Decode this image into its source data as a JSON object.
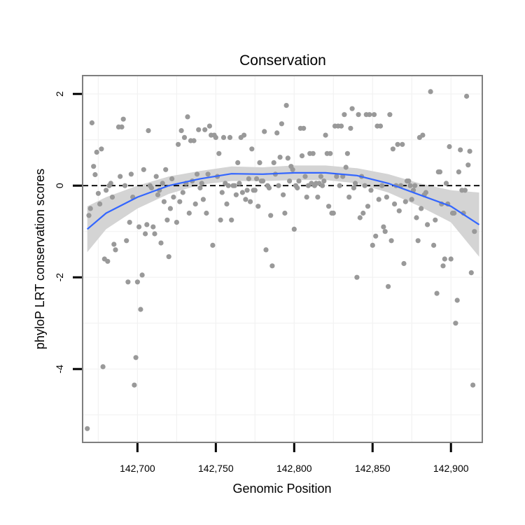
{
  "chart_data": {
    "type": "scatter",
    "title": "Conservation",
    "xlabel": "Genomic Position",
    "ylabel": "phyloP LRT conservation scores",
    "xlim": [
      142665,
      142920
    ],
    "ylim": [
      -5.6,
      2.4
    ],
    "x_ticks": [
      142700,
      142750,
      142800,
      142850,
      142900
    ],
    "x_tick_labels": [
      "142,700",
      "142,750",
      "142,800",
      "142,850",
      "142,900"
    ],
    "y_ticks": [
      2,
      0,
      -2,
      -4
    ],
    "y_tick_labels": [
      "2",
      "0",
      "-2",
      "-4"
    ],
    "grid": true,
    "reference_line": {
      "y": 0,
      "style": "dashed",
      "color": "#000000"
    },
    "colors": {
      "points": "#999999",
      "smooth": "#3366FF",
      "ribbon": "#D4D4D4",
      "border": "#7F7F7F"
    },
    "points": [
      [
        142668,
        -5.3
      ],
      [
        142669,
        -0.65
      ],
      [
        142670,
        -0.5
      ],
      [
        142671,
        1.37
      ],
      [
        142672,
        0.42
      ],
      [
        142673,
        0.24
      ],
      [
        142674,
        0.73
      ],
      [
        142675,
        -0.17
      ],
      [
        142676,
        -0.4
      ],
      [
        142677,
        0.8
      ],
      [
        142678,
        -3.95
      ],
      [
        142679,
        -1.6
      ],
      [
        142680,
        -0.1
      ],
      [
        142681,
        -1.65
      ],
      [
        142682,
        0.0
      ],
      [
        142683,
        0.05
      ],
      [
        142684,
        -0.25
      ],
      [
        142685,
        -1.28
      ],
      [
        142686,
        -1.4
      ],
      [
        142688,
        1.28
      ],
      [
        142689,
        0.2
      ],
      [
        142690,
        1.28
      ],
      [
        142691,
        1.45
      ],
      [
        142692,
        0.0
      ],
      [
        142693,
        -1.2
      ],
      [
        142694,
        -2.1
      ],
      [
        142695,
        -0.8
      ],
      [
        142696,
        0.25
      ],
      [
        142697,
        -0.25
      ],
      [
        142698,
        -4.35
      ],
      [
        142699,
        -3.75
      ],
      [
        142700,
        -2.1
      ],
      [
        142701,
        -0.9
      ],
      [
        142702,
        -2.7
      ],
      [
        142703,
        -1.95
      ],
      [
        142704,
        0.35
      ],
      [
        142705,
        -1.05
      ],
      [
        142706,
        -0.85
      ],
      [
        142707,
        1.2
      ],
      [
        142708,
        0.0
      ],
      [
        142709,
        -0.05
      ],
      [
        142710,
        -0.9
      ],
      [
        142711,
        -1.05
      ],
      [
        142712,
        0.2
      ],
      [
        142713,
        -0.2
      ],
      [
        142714,
        -0.1
      ],
      [
        142715,
        -1.25
      ],
      [
        142716,
        0.05
      ],
      [
        142717,
        -0.35
      ],
      [
        142718,
        0.35
      ],
      [
        142719,
        -0.75
      ],
      [
        142720,
        -1.55
      ],
      [
        142721,
        -0.5
      ],
      [
        142722,
        0.15
      ],
      [
        142723,
        -0.25
      ],
      [
        142725,
        -0.8
      ],
      [
        142726,
        0.9
      ],
      [
        142727,
        -0.35
      ],
      [
        142728,
        1.2
      ],
      [
        142729,
        -0.15
      ],
      [
        142730,
        1.05
      ],
      [
        142731,
        0.05
      ],
      [
        142732,
        1.5
      ],
      [
        142733,
        -0.6
      ],
      [
        142734,
        0.98
      ],
      [
        142735,
        0.1
      ],
      [
        142736,
        0.98
      ],
      [
        142737,
        -0.4
      ],
      [
        142738,
        0.25
      ],
      [
        142739,
        1.22
      ],
      [
        142740,
        -0.05
      ],
      [
        142741,
        0.05
      ],
      [
        142742,
        -0.3
      ],
      [
        142743,
        1.22
      ],
      [
        142744,
        -0.6
      ],
      [
        142745,
        0.25
      ],
      [
        142746,
        1.3
      ],
      [
        142747,
        1.1
      ],
      [
        142748,
        -1.3
      ],
      [
        142749,
        1.1
      ],
      [
        142750,
        1.05
      ],
      [
        142751,
        0.2
      ],
      [
        142752,
        0.7
      ],
      [
        142753,
        -0.75
      ],
      [
        142754,
        -0.15
      ],
      [
        142755,
        1.05
      ],
      [
        142756,
        0.05
      ],
      [
        142757,
        -0.4
      ],
      [
        142758,
        0.0
      ],
      [
        142759,
        1.05
      ],
      [
        142760,
        -0.75
      ],
      [
        142761,
        0.0
      ],
      [
        142762,
        0.0
      ],
      [
        142763,
        -0.2
      ],
      [
        142764,
        0.5
      ],
      [
        142765,
        0.05
      ],
      [
        142766,
        1.05
      ],
      [
        142767,
        -0.15
      ],
      [
        142768,
        1.1
      ],
      [
        142769,
        -0.3
      ],
      [
        142770,
        -0.1
      ],
      [
        142771,
        0.15
      ],
      [
        142772,
        -0.35
      ],
      [
        142773,
        0.8
      ],
      [
        142774,
        -0.1
      ],
      [
        142775,
        -0.1
      ],
      [
        142776,
        0.15
      ],
      [
        142777,
        -0.45
      ],
      [
        142778,
        0.5
      ],
      [
        142779,
        0.1
      ],
      [
        142780,
        0.1
      ],
      [
        142781,
        1.18
      ],
      [
        142782,
        -1.4
      ],
      [
        142783,
        0.0
      ],
      [
        142784,
        -0.05
      ],
      [
        142785,
        -0.65
      ],
      [
        142786,
        -1.75
      ],
      [
        142787,
        0.5
      ],
      [
        142788,
        0.25
      ],
      [
        142789,
        1.15
      ],
      [
        142790,
        0.0
      ],
      [
        142791,
        0.62
      ],
      [
        142792,
        1.35
      ],
      [
        142793,
        -0.2
      ],
      [
        142794,
        -0.6
      ],
      [
        142795,
        1.75
      ],
      [
        142796,
        0.6
      ],
      [
        142797,
        0.1
      ],
      [
        142798,
        0.42
      ],
      [
        142799,
        0.35
      ],
      [
        142800,
        -0.95
      ],
      [
        142801,
        0.0
      ],
      [
        142802,
        -0.05
      ],
      [
        142803,
        0.1
      ],
      [
        142804,
        1.25
      ],
      [
        142805,
        0.65
      ],
      [
        142806,
        1.25
      ],
      [
        142807,
        0.2
      ],
      [
        142808,
        -0.25
      ],
      [
        142809,
        0.0
      ],
      [
        142810,
        0.7
      ],
      [
        142811,
        0.05
      ],
      [
        142812,
        0.7
      ],
      [
        142813,
        0.0
      ],
      [
        142814,
        0.05
      ],
      [
        142815,
        -0.25
      ],
      [
        142816,
        0.05
      ],
      [
        142817,
        0.2
      ],
      [
        142818,
        0.0
      ],
      [
        142819,
        0.1
      ],
      [
        142820,
        1.1
      ],
      [
        142821,
        0.7
      ],
      [
        142822,
        -0.45
      ],
      [
        142823,
        0.7
      ],
      [
        142824,
        -0.6
      ],
      [
        142825,
        -0.6
      ],
      [
        142826,
        1.3
      ],
      [
        142827,
        0.2
      ],
      [
        142828,
        1.3
      ],
      [
        142829,
        0.0
      ],
      [
        142830,
        1.3
      ],
      [
        142831,
        0.2
      ],
      [
        142832,
        1.55
      ],
      [
        142833,
        0.4
      ],
      [
        142834,
        0.7
      ],
      [
        142835,
        -0.25
      ],
      [
        142836,
        1.25
      ],
      [
        142837,
        1.68
      ],
      [
        142838,
        -0.05
      ],
      [
        142839,
        0.05
      ],
      [
        142840,
        -2.0
      ],
      [
        142841,
        1.55
      ],
      [
        142842,
        -0.7
      ],
      [
        142843,
        0.2
      ],
      [
        142844,
        -0.6
      ],
      [
        142845,
        0.0
      ],
      [
        142846,
        1.55
      ],
      [
        142847,
        -0.45
      ],
      [
        142848,
        1.55
      ],
      [
        142849,
        -0.1
      ],
      [
        142850,
        -1.3
      ],
      [
        142851,
        1.55
      ],
      [
        142852,
        -1.1
      ],
      [
        142853,
        1.3
      ],
      [
        142854,
        -0.3
      ],
      [
        142855,
        1.3
      ],
      [
        142856,
        0.0
      ],
      [
        142857,
        -0.9
      ],
      [
        142858,
        -1.0
      ],
      [
        142859,
        -0.25
      ],
      [
        142860,
        -2.2
      ],
      [
        142861,
        1.55
      ],
      [
        142862,
        -1.2
      ],
      [
        142863,
        0.8
      ],
      [
        142864,
        -0.4
      ],
      [
        142865,
        0.0
      ],
      [
        142866,
        0.9
      ],
      [
        142867,
        -0.55
      ],
      [
        142868,
        0.0
      ],
      [
        142869,
        0.9
      ],
      [
        142870,
        -1.7
      ],
      [
        142871,
        -0.35
      ],
      [
        142872,
        0.1
      ],
      [
        142873,
        0.1
      ],
      [
        142874,
        0.0
      ],
      [
        142875,
        -0.3
      ],
      [
        142876,
        -0.1
      ],
      [
        142877,
        0.0
      ],
      [
        142878,
        -0.7
      ],
      [
        142879,
        -1.2
      ],
      [
        142880,
        1.05
      ],
      [
        142881,
        -0.5
      ],
      [
        142882,
        1.1
      ],
      [
        142883,
        -0.2
      ],
      [
        142884,
        -0.15
      ],
      [
        142885,
        -0.85
      ],
      [
        142887,
        2.05
      ],
      [
        142889,
        -1.3
      ],
      [
        142890,
        -0.75
      ],
      [
        142891,
        -2.35
      ],
      [
        142892,
        0.3
      ],
      [
        142893,
        0.3
      ],
      [
        142894,
        -0.4
      ],
      [
        142895,
        -1.75
      ],
      [
        142896,
        -1.6
      ],
      [
        142897,
        0.05
      ],
      [
        142898,
        -0.4
      ],
      [
        142899,
        0.85
      ],
      [
        142900,
        -1.6
      ],
      [
        142901,
        -0.6
      ],
      [
        142902,
        -0.6
      ],
      [
        142903,
        -3.0
      ],
      [
        142904,
        -2.5
      ],
      [
        142905,
        0.3
      ],
      [
        142906,
        0.78
      ],
      [
        142907,
        -0.1
      ],
      [
        142908,
        -0.6
      ],
      [
        142909,
        -0.1
      ],
      [
        142910,
        1.95
      ],
      [
        142911,
        0.45
      ],
      [
        142912,
        0.75
      ],
      [
        142913,
        -1.9
      ],
      [
        142914,
        -4.35
      ],
      [
        142915,
        -1.0
      ]
    ],
    "smooth": {
      "x": [
        142668,
        142680,
        142700,
        142720,
        142740,
        142760,
        142780,
        142800,
        142820,
        142840,
        142860,
        142880,
        142900,
        142918
      ],
      "y": [
        -0.95,
        -0.6,
        -0.25,
        0.0,
        0.15,
        0.26,
        0.25,
        0.28,
        0.28,
        0.22,
        0.05,
        -0.2,
        -0.45,
        -0.85
      ],
      "lower": [
        -1.45,
        -0.95,
        -0.5,
        -0.18,
        0.02,
        0.1,
        0.1,
        0.12,
        0.12,
        0.05,
        -0.15,
        -0.45,
        -0.8,
        -1.55
      ],
      "upper": [
        -0.45,
        -0.25,
        0.0,
        0.2,
        0.32,
        0.42,
        0.4,
        0.44,
        0.44,
        0.38,
        0.25,
        0.05,
        -0.1,
        -0.15
      ]
    }
  }
}
